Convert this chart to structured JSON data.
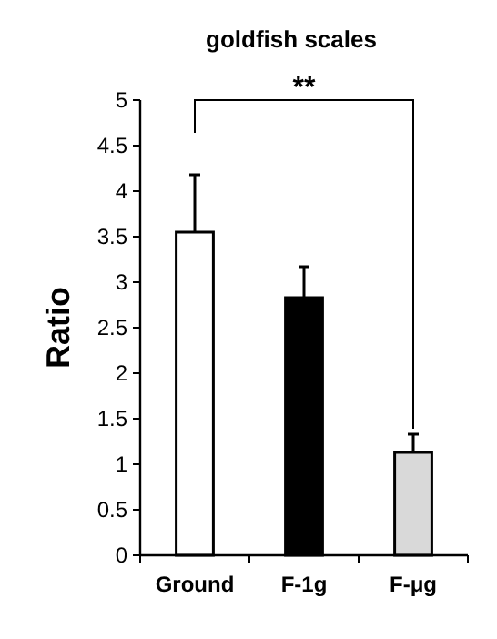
{
  "chart_data": {
    "type": "bar",
    "title": "goldfish scales",
    "ylabel": "Ratio",
    "categories": [
      "Ground",
      "F-1g",
      "F-μg"
    ],
    "values": [
      3.55,
      2.83,
      1.13
    ],
    "colors": [
      "#ffffff",
      "#000000",
      "#d9d9d9"
    ],
    "errors": [
      [
        3.55,
        4.18
      ],
      [
        2.83,
        3.17
      ],
      [
        1.13,
        1.33
      ]
    ],
    "ylim": [
      0,
      5
    ],
    "yticks": [
      0,
      0.5,
      1,
      1.5,
      2,
      2.5,
      3,
      3.5,
      4,
      4.5,
      5
    ],
    "annotations": [
      "**"
    ],
    "grid": false
  }
}
